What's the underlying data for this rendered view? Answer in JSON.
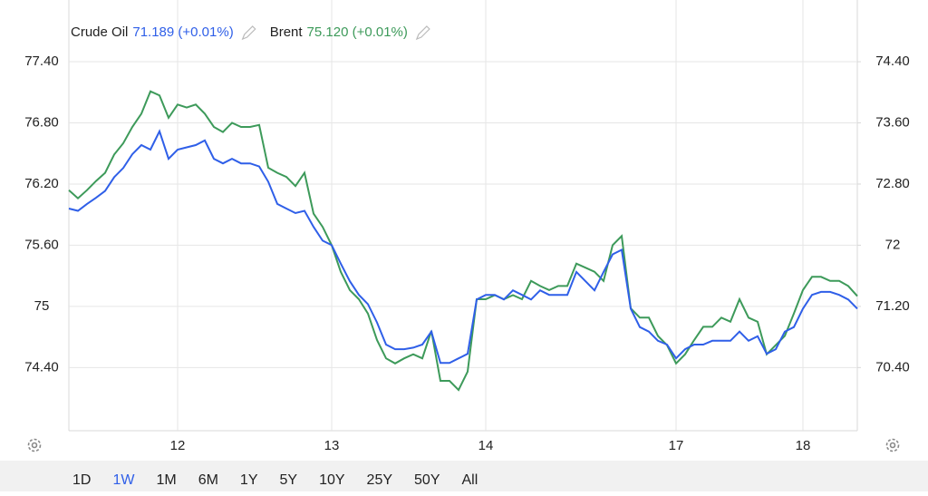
{
  "chart_data": {
    "type": "line",
    "categories": [
      null,
      null,
      null,
      null,
      null,
      null,
      null,
      null,
      null,
      null,
      null,
      null,
      "12",
      null,
      null,
      null,
      null,
      null,
      null,
      null,
      null,
      null,
      null,
      null,
      null,
      null,
      null,
      null,
      null,
      "13",
      null,
      null,
      null,
      null,
      null,
      null,
      null,
      null,
      null,
      null,
      null,
      null,
      null,
      null,
      null,
      null,
      "14",
      null,
      null,
      null,
      null,
      null,
      null,
      null,
      null,
      null,
      null,
      null,
      null,
      null,
      null,
      null,
      null,
      null,
      null,
      null,
      null,
      "17",
      null,
      null,
      null,
      null,
      null,
      null,
      null,
      null,
      null,
      null,
      null,
      null,
      null,
      "18",
      null,
      null,
      null,
      null,
      null,
      null
    ],
    "series": [
      {
        "name": "Crude Oil",
        "legend_value": "71.189 (+0.01%)",
        "color": "#2f5fe8",
        "axis": "y2",
        "values": [
          72.48,
          72.45,
          72.54,
          72.62,
          72.71,
          72.89,
          73.01,
          73.19,
          73.31,
          73.25,
          73.49,
          73.13,
          73.25,
          73.28,
          73.31,
          73.37,
          73.13,
          73.07,
          73.13,
          73.07,
          73.07,
          73.03,
          72.83,
          72.54,
          72.48,
          72.42,
          72.45,
          72.24,
          72.06,
          72.0,
          71.76,
          71.53,
          71.35,
          71.23,
          70.99,
          70.7,
          70.64,
          70.64,
          70.66,
          70.7,
          70.87,
          70.46,
          70.46,
          70.52,
          70.58,
          71.29,
          71.35,
          71.35,
          71.29,
          71.41,
          71.35,
          71.29,
          71.41,
          71.35,
          71.35,
          71.35,
          71.65,
          71.53,
          71.41,
          71.65,
          71.88,
          71.94,
          71.17,
          70.93,
          70.87,
          70.75,
          70.7,
          70.52,
          70.64,
          70.7,
          70.7,
          70.75,
          70.75,
          70.75,
          70.87,
          70.75,
          70.81,
          70.58,
          70.64,
          70.87,
          70.93,
          71.17,
          71.35,
          71.39,
          71.39,
          71.35,
          71.29,
          71.17
        ]
      },
      {
        "name": "Brent",
        "legend_value": "75.120 (+0.01%)",
        "color": "#3d9a5a",
        "values": [
          76.14,
          76.06,
          76.14,
          76.23,
          76.31,
          76.49,
          76.6,
          76.76,
          76.89,
          77.11,
          77.07,
          76.85,
          76.98,
          76.95,
          76.98,
          76.89,
          76.76,
          76.71,
          76.8,
          76.76,
          76.76,
          76.78,
          76.36,
          76.31,
          76.27,
          76.18,
          76.31,
          75.91,
          75.78,
          75.6,
          75.34,
          75.16,
          75.07,
          74.93,
          74.67,
          74.49,
          74.44,
          74.49,
          74.53,
          74.49,
          74.76,
          74.27,
          74.27,
          74.18,
          74.36,
          75.07,
          75.07,
          75.11,
          75.07,
          75.11,
          75.07,
          75.25,
          75.2,
          75.16,
          75.2,
          75.2,
          75.42,
          75.38,
          75.34,
          75.25,
          75.6,
          75.69,
          74.98,
          74.89,
          74.89,
          74.71,
          74.62,
          74.44,
          74.53,
          74.67,
          74.8,
          74.8,
          74.89,
          74.85,
          75.07,
          74.89,
          74.85,
          74.53,
          74.62,
          74.71,
          74.93,
          75.16,
          75.29,
          75.29,
          75.25,
          75.25,
          75.2,
          75.1
        ]
      }
    ],
    "ylim": [
      73.8,
      78.0
    ],
    "yticks": [
      {
        "value": 77.4,
        "label": "77.40"
      },
      {
        "value": 76.8,
        "label": "76.80"
      },
      {
        "value": 76.2,
        "label": "76.20"
      },
      {
        "value": 75.6,
        "label": "75.60"
      },
      75,
      {
        "value": 74.4,
        "label": "74.40"
      }
    ],
    "y2lim": [
      69.6,
      75.2
    ],
    "y2ticks": [
      {
        "value": 74.4,
        "label": "74.40"
      },
      {
        "value": 73.6,
        "label": "73.60"
      },
      {
        "value": 72.8,
        "label": "72.80"
      },
      72,
      {
        "value": 71.2,
        "label": "71.20"
      },
      {
        "value": 70.4,
        "label": "70.40"
      }
    ],
    "grid": true
  },
  "ranges": [
    "1D",
    "1W",
    "1M",
    "6M",
    "1Y",
    "5Y",
    "10Y",
    "25Y",
    "50Y",
    "All"
  ],
  "active_range_index": 1
}
